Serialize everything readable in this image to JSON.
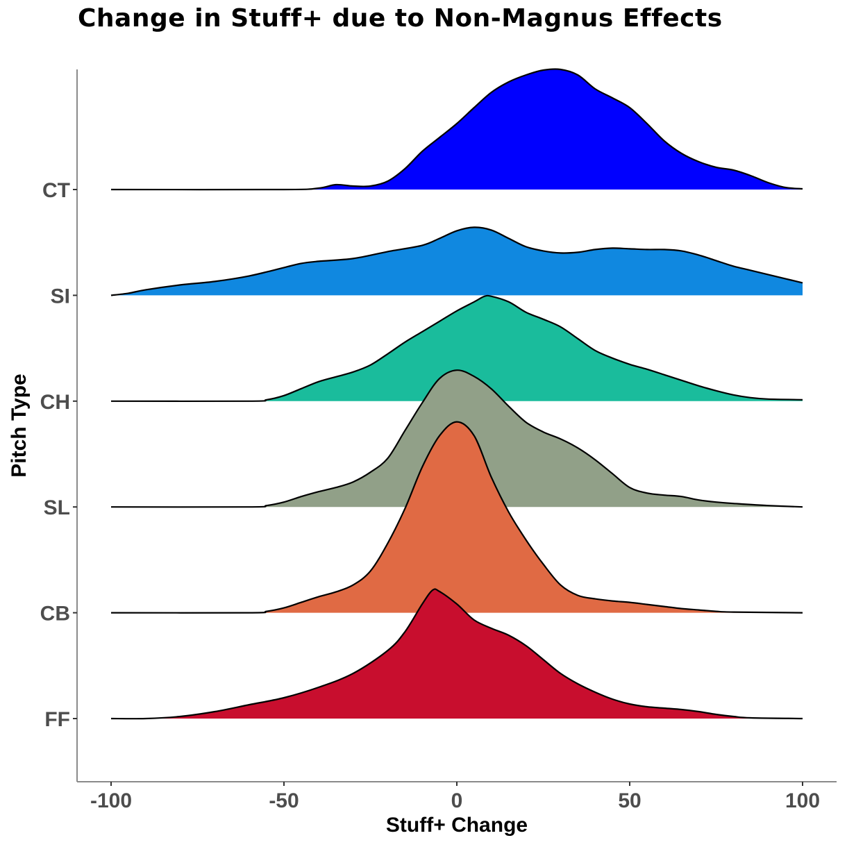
{
  "chart_data": {
    "type": "ridgeline",
    "title": "Change in Stuff+ due to Non-Magnus Effects",
    "xlabel": "Stuff+ Change",
    "ylabel": "Pitch Type",
    "xlim": [
      -100,
      100
    ],
    "xticks": [
      -100,
      -50,
      0,
      50,
      100
    ],
    "xtick_labels": [
      "-100",
      "-50",
      "0",
      "50",
      "100"
    ],
    "grid": false,
    "legend": "none",
    "series": [
      {
        "name": "CT",
        "color": "#0000FF",
        "x": [
          -100,
          -50,
          -40,
          -35,
          -30,
          -25,
          -20,
          -15,
          -10,
          -5,
          0,
          5,
          10,
          15,
          20,
          25,
          30,
          35,
          40,
          45,
          50,
          55,
          60,
          65,
          70,
          75,
          80,
          85,
          90,
          95,
          100
        ],
        "density": [
          0,
          0,
          0.02,
          0.07,
          0.05,
          0.05,
          0.12,
          0.3,
          0.55,
          0.75,
          0.95,
          1.18,
          1.4,
          1.55,
          1.65,
          1.72,
          1.73,
          1.65,
          1.45,
          1.32,
          1.18,
          0.95,
          0.7,
          0.52,
          0.4,
          0.32,
          0.28,
          0.2,
          0.1,
          0.03,
          0.01
        ]
      },
      {
        "name": "SI",
        "color": "#1088E0",
        "x": [
          -100,
          -95,
          -90,
          -80,
          -70,
          -60,
          -50,
          -45,
          -40,
          -30,
          -20,
          -10,
          -5,
          0,
          5,
          10,
          15,
          20,
          25,
          30,
          35,
          40,
          45,
          50,
          55,
          60,
          65,
          70,
          75,
          80,
          85,
          90,
          95,
          100
        ],
        "density": [
          0,
          0.03,
          0.08,
          0.15,
          0.2,
          0.28,
          0.4,
          0.46,
          0.49,
          0.53,
          0.63,
          0.72,
          0.82,
          0.93,
          0.98,
          0.94,
          0.82,
          0.7,
          0.64,
          0.61,
          0.62,
          0.66,
          0.68,
          0.67,
          0.66,
          0.66,
          0.64,
          0.58,
          0.5,
          0.42,
          0.36,
          0.3,
          0.24,
          0.18
        ]
      },
      {
        "name": "CH",
        "color": "#1ABC9C",
        "x": [
          -100,
          -60,
          -55,
          -50,
          -45,
          -40,
          -35,
          -30,
          -25,
          -20,
          -15,
          -10,
          -5,
          0,
          5,
          8,
          10,
          15,
          20,
          25,
          30,
          35,
          40,
          45,
          50,
          55,
          60,
          65,
          70,
          75,
          80,
          85,
          90,
          100
        ],
        "density": [
          0,
          0,
          0.02,
          0.08,
          0.18,
          0.28,
          0.35,
          0.42,
          0.52,
          0.68,
          0.85,
          1.0,
          1.15,
          1.3,
          1.43,
          1.51,
          1.51,
          1.43,
          1.28,
          1.18,
          1.07,
          0.9,
          0.73,
          0.62,
          0.53,
          0.46,
          0.38,
          0.3,
          0.22,
          0.15,
          0.09,
          0.05,
          0.03,
          0.02
        ]
      },
      {
        "name": "SL",
        "color": "#91A088",
        "x": [
          -100,
          -60,
          -55,
          -50,
          -45,
          -40,
          -35,
          -30,
          -25,
          -20,
          -15,
          -10,
          -5,
          0,
          5,
          10,
          15,
          20,
          25,
          30,
          35,
          40,
          45,
          50,
          55,
          60,
          65,
          70,
          75,
          80,
          90,
          100
        ],
        "density": [
          0,
          0,
          0.02,
          0.07,
          0.15,
          0.22,
          0.28,
          0.36,
          0.5,
          0.7,
          1.1,
          1.5,
          1.85,
          1.97,
          1.88,
          1.7,
          1.45,
          1.22,
          1.08,
          0.98,
          0.85,
          0.68,
          0.48,
          0.28,
          0.2,
          0.17,
          0.15,
          0.1,
          0.07,
          0.05,
          0.02,
          0
        ]
      },
      {
        "name": "CB",
        "color": "#E06A44",
        "x": [
          -100,
          -60,
          -55,
          -50,
          -45,
          -40,
          -35,
          -30,
          -25,
          -20,
          -15,
          -10,
          -5,
          0,
          5,
          10,
          15,
          20,
          25,
          30,
          35,
          40,
          45,
          50,
          55,
          60,
          65,
          70,
          75,
          80,
          100
        ],
        "density": [
          0,
          0,
          0.02,
          0.07,
          0.15,
          0.23,
          0.3,
          0.4,
          0.6,
          1.0,
          1.5,
          2.1,
          2.55,
          2.75,
          2.55,
          1.95,
          1.45,
          1.05,
          0.7,
          0.4,
          0.25,
          0.2,
          0.17,
          0.15,
          0.12,
          0.09,
          0.06,
          0.04,
          0.02,
          0.01,
          0
        ]
      },
      {
        "name": "FF",
        "color": "#C80E2E",
        "x": [
          -100,
          -90,
          -80,
          -70,
          -60,
          -50,
          -40,
          -30,
          -20,
          -15,
          -10,
          -7,
          -5,
          0,
          5,
          10,
          15,
          20,
          25,
          30,
          35,
          40,
          45,
          50,
          55,
          60,
          65,
          70,
          75,
          80,
          85,
          100
        ],
        "density": [
          0,
          0,
          0.03,
          0.1,
          0.2,
          0.3,
          0.45,
          0.65,
          0.98,
          1.25,
          1.65,
          1.85,
          1.83,
          1.65,
          1.42,
          1.3,
          1.2,
          1.05,
          0.85,
          0.65,
          0.5,
          0.38,
          0.28,
          0.21,
          0.17,
          0.15,
          0.13,
          0.1,
          0.06,
          0.03,
          0.01,
          0
        ]
      }
    ]
  }
}
